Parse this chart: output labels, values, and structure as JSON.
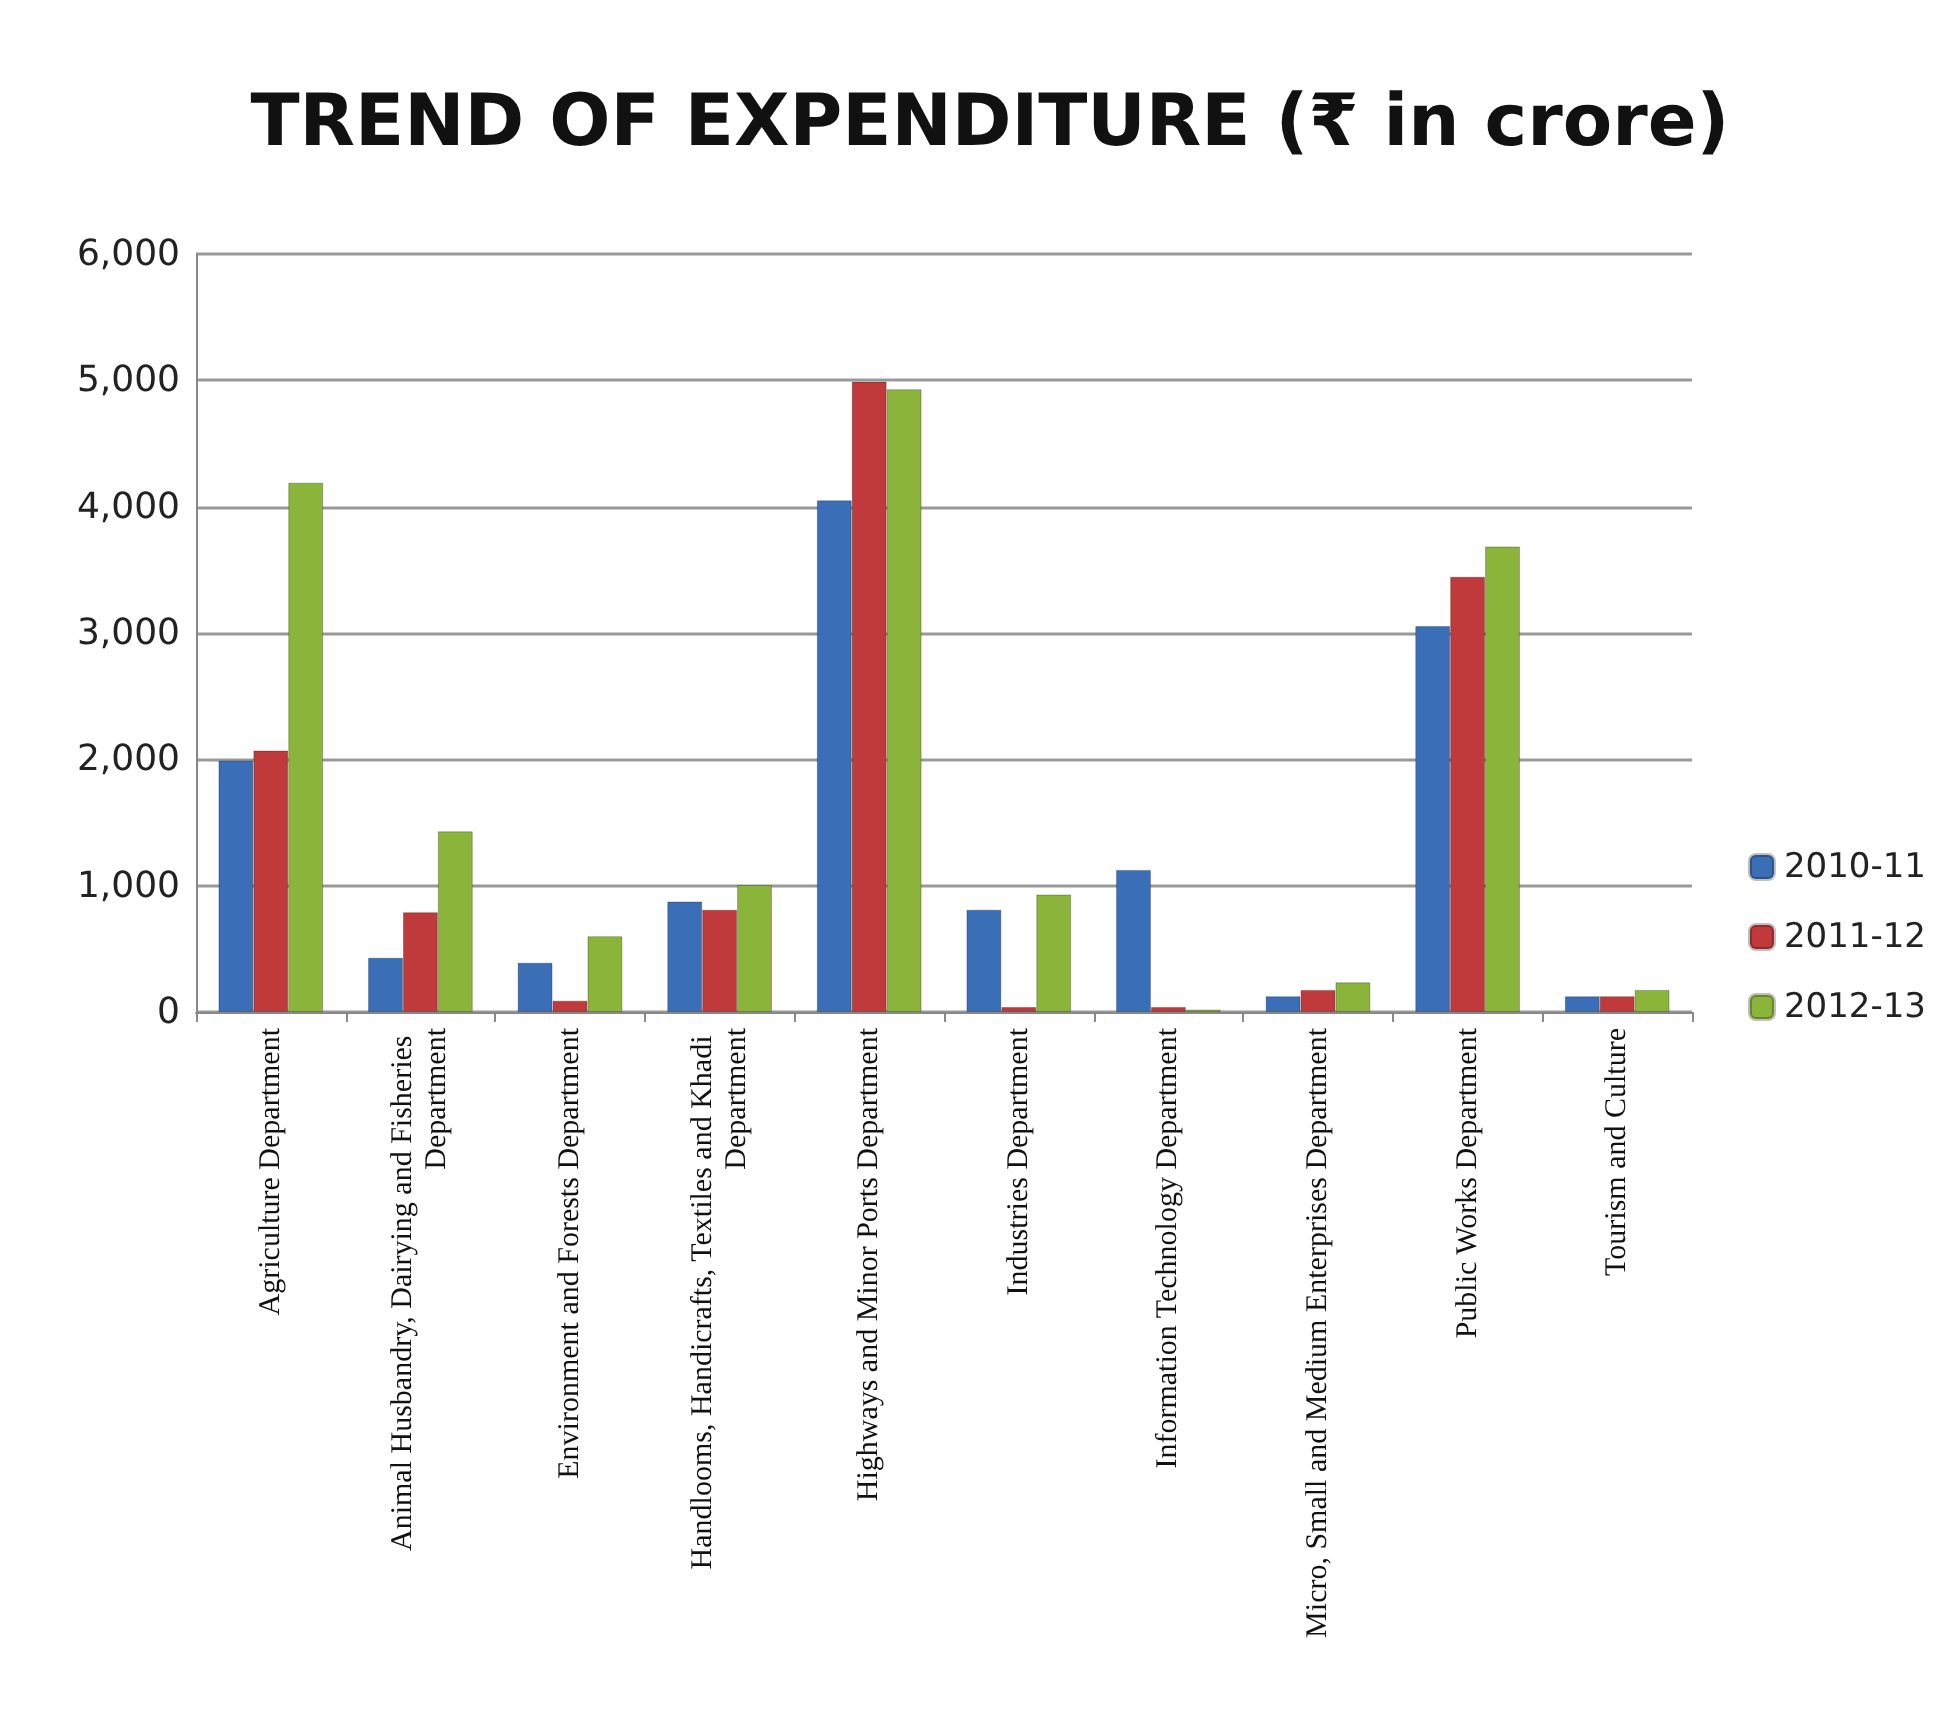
{
  "chart_data": {
    "type": "bar",
    "title": "TREND OF EXPENDITURE (₹ in crore)",
    "categories": [
      "Agriculture Department",
      "Animal Husbandry, Dairying and Fisheries Department",
      "Environment and Forests Department",
      "Handlooms, Handicrafts, Textiles and Khadi Department",
      "Highways and Minor Ports Department",
      "Industries Department",
      "Information Technology Department",
      "Micro, Small and Medium Enterprises Department",
      "Public Works Department",
      "Tourism and Culture"
    ],
    "series": [
      {
        "name": "2010-11",
        "color": "#3a6fb7",
        "values": [
          1990,
          430,
          390,
          875,
          4050,
          810,
          1125,
          125,
          3055,
          125
        ]
      },
      {
        "name": "2011-12",
        "color": "#c0393b",
        "values": [
          2070,
          790,
          90,
          810,
          4990,
          40,
          40,
          175,
          3445,
          125
        ]
      },
      {
        "name": "2012-13",
        "color": "#8bb43a",
        "values": [
          4190,
          1430,
          600,
          1005,
          4930,
          930,
          20,
          235,
          3685,
          175
        ]
      }
    ],
    "ylim": [
      0,
      6000
    ],
    "yticks": [
      {
        "value": 0,
        "label": "0"
      },
      {
        "value": 1000,
        "label": "1,000"
      },
      {
        "value": 2000,
        "label": "2,000"
      },
      {
        "value": 3000,
        "label": "3,000"
      },
      {
        "value": 4000,
        "label": "4,000"
      },
      {
        "value": 5000,
        "label": "5,000"
      },
      {
        "value": 6000,
        "label": "6,000"
      }
    ],
    "grid": "y",
    "legend": "right"
  }
}
